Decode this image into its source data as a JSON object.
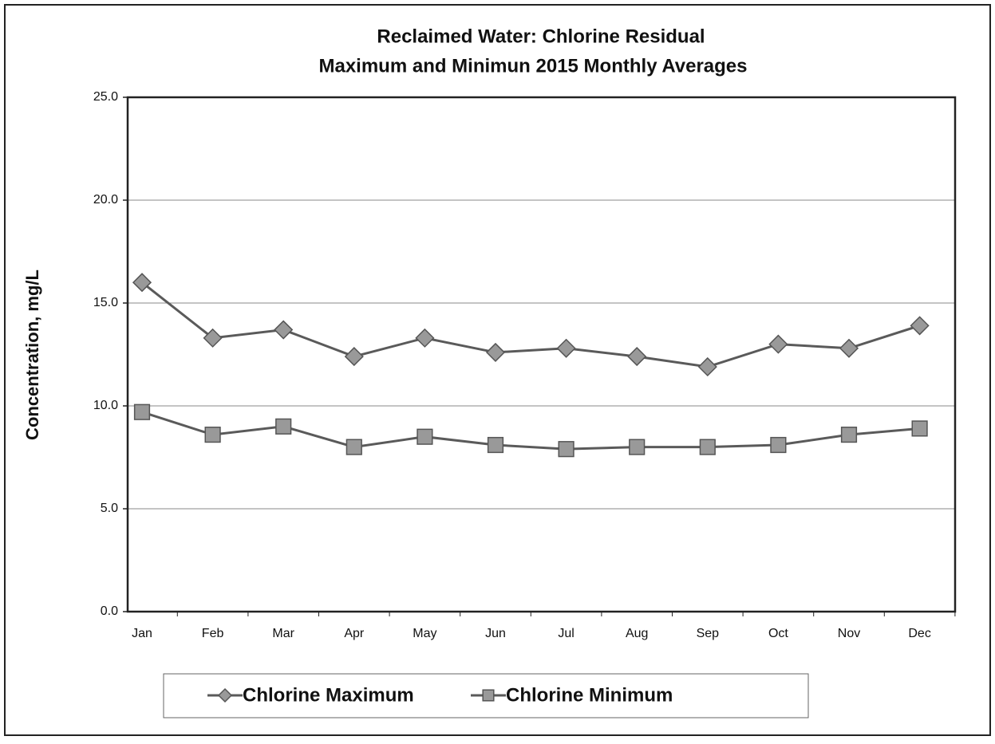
{
  "chart_data": {
    "type": "line",
    "title": "Reclaimed Water:  Chlorine Residual",
    "subtitle": "Maximum and Minimun 2015 Monthly Averages",
    "y_label": "Concentration, mg/L",
    "categories": [
      "Jan",
      "Feb",
      "Mar",
      "Apr",
      "May",
      "Jun",
      "Jul",
      "Aug",
      "Sep",
      "Oct",
      "Nov",
      "Dec"
    ],
    "series": [
      {
        "name": "Chlorine Maximum",
        "color": "#5a5a5a",
        "marker": "diamond",
        "values": [
          16.0,
          13.3,
          13.7,
          12.4,
          13.3,
          12.6,
          12.8,
          12.4,
          11.9,
          13.0,
          12.8,
          13.9
        ]
      },
      {
        "name": "Chlorine Minimum",
        "color": "#5a5a5a",
        "marker": "square",
        "values": [
          9.7,
          8.6,
          9.0,
          8.0,
          8.5,
          8.1,
          7.9,
          8.0,
          8.0,
          8.1,
          8.6,
          8.9
        ]
      }
    ],
    "ylim": [
      0,
      25
    ],
    "yticks": [
      {
        "value": 0,
        "label": "0.0"
      },
      {
        "value": 5,
        "label": "5.0"
      },
      {
        "value": 10,
        "label": "10.0"
      },
      {
        "value": 15,
        "label": "15.0"
      },
      {
        "value": 20,
        "label": "20.0"
      },
      {
        "value": 25,
        "label": "25.0"
      }
    ],
    "grid": true,
    "legend": "bottom"
  }
}
